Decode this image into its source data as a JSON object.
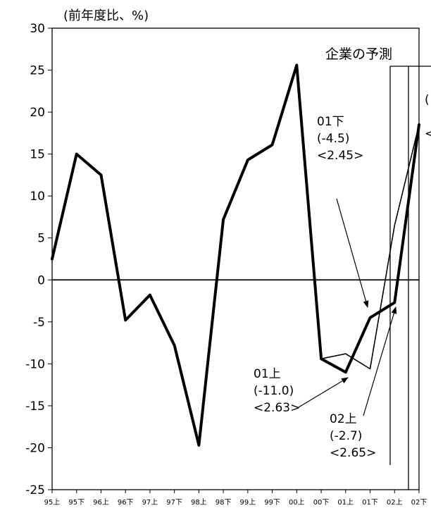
{
  "chart_data": {
    "type": "line",
    "unit_label": "(前年度比、%)",
    "ylim": [
      -25,
      30
    ],
    "yticks": [
      30,
      25,
      20,
      15,
      10,
      5,
      0,
      -5,
      -10,
      -15,
      -20,
      -25
    ],
    "categories": [
      "95上",
      "95下",
      "96上",
      "96下",
      "97上",
      "97下",
      "98上",
      "98下",
      "99上",
      "99下",
      "00上",
      "00下",
      "01上",
      "01下",
      "02上",
      "02下"
    ],
    "series": [
      {
        "values": [
          2.5,
          15.0,
          12.5,
          -4.8,
          -1.8,
          -7.8,
          -19.7,
          7.2,
          14.3,
          16.1,
          25.6,
          -9.4,
          -11.0,
          -4.5,
          -2.7,
          18.5
        ]
      },
      {
        "values": [
          null,
          null,
          null,
          null,
          null,
          null,
          null,
          null,
          null,
          null,
          null,
          -9.4,
          -8.8,
          -10.6,
          6.5,
          18.5
        ]
      }
    ],
    "forecast_label": "企業の予測",
    "annotations": [
      {
        "lines": [
          "01下",
          "(-4.5)",
          "<2.45>"
        ]
      },
      {
        "lines": [
          "01上",
          "(-11.0)",
          "<2.63>"
        ]
      },
      {
        "lines": [
          "02上",
          "(-2.7)",
          "<2.65>"
        ]
      }
    ],
    "cutoff_glyphs": [
      "(",
      "<"
    ]
  }
}
